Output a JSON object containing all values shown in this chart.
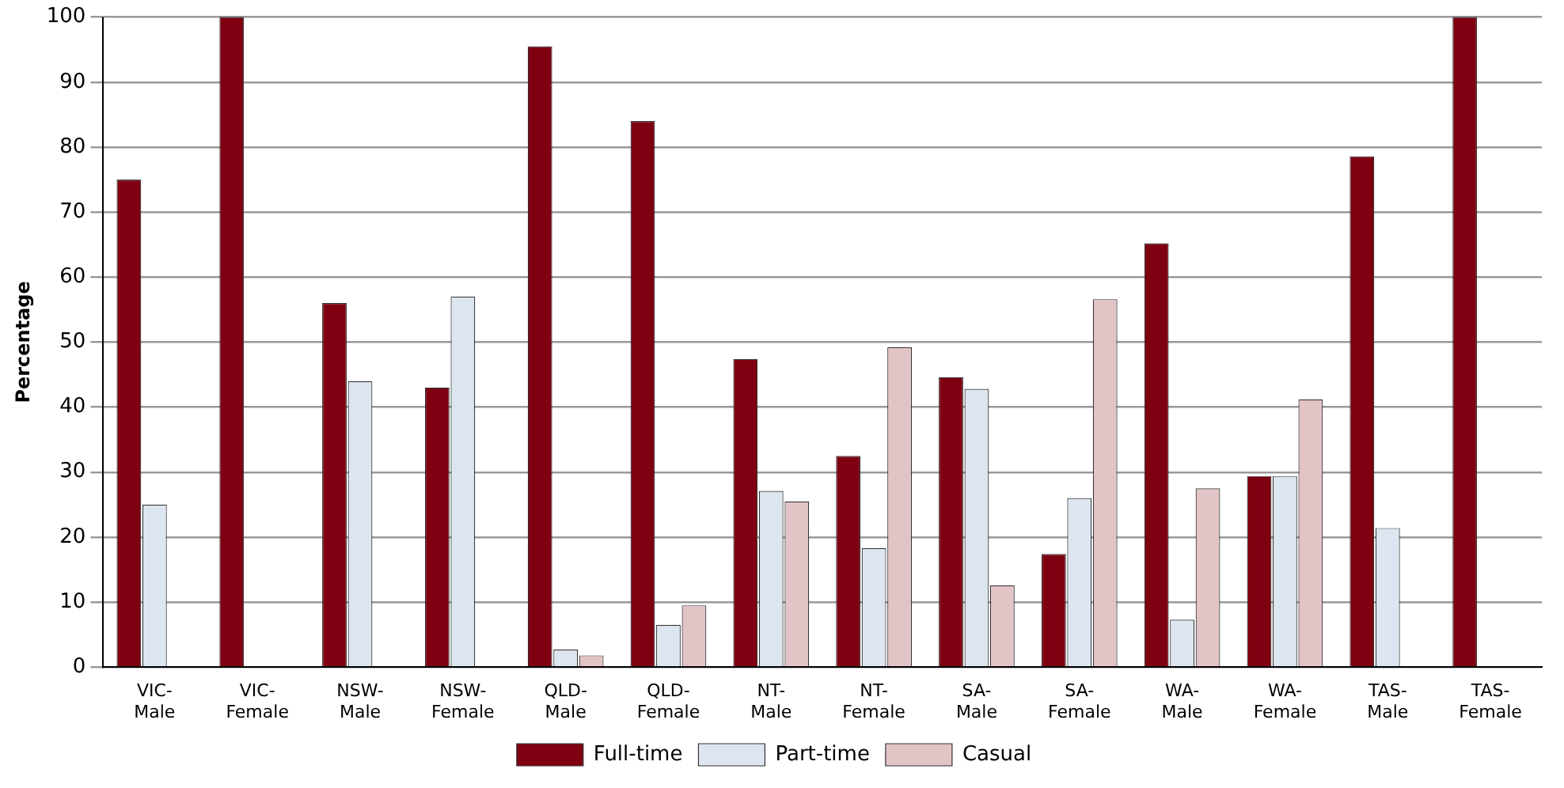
{
  "chart_data": {
    "type": "bar",
    "ylabel": "Percentage",
    "categories": [
      "VIC-Male",
      "VIC-Female",
      "NSW-Male",
      "NSW-Female",
      "QLD-Male",
      "QLD-Female",
      "NT-Male",
      "NT-Female",
      "SA-Male",
      "SA-Female",
      "WA-Male",
      "WA-Female",
      "TAS-Male",
      "TAS-Female"
    ],
    "series": [
      {
        "name": "Full-time",
        "color": "#7f0010",
        "values": [
          75,
          100,
          56,
          43,
          95.5,
          84,
          47.4,
          32.5,
          44.6,
          17.4,
          65.2,
          29.4,
          78.6,
          100
        ]
      },
      {
        "name": "Part-time",
        "color": "#dde6f0",
        "values": [
          25,
          0,
          44,
          57,
          2.7,
          6.5,
          27.1,
          18.3,
          42.8,
          26,
          7.3,
          29.4,
          21.4,
          0
        ]
      },
      {
        "name": "Casual",
        "color": "#e3c4c6",
        "values": [
          0,
          0,
          0,
          0,
          1.8,
          9.5,
          25.5,
          49.2,
          12.6,
          56.6,
          27.5,
          41.2,
          0,
          0
        ]
      }
    ],
    "ylim": [
      0,
      100
    ],
    "yticks": [
      0,
      10,
      20,
      30,
      40,
      50,
      60,
      70,
      80,
      90,
      100
    ],
    "grid": "y",
    "legend": "bottom"
  }
}
